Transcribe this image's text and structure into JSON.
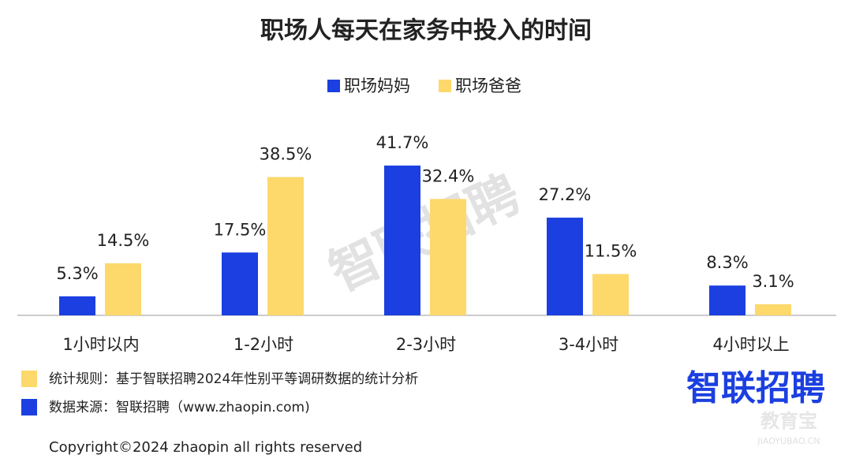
{
  "chart_data": {
    "type": "bar",
    "title": "职场人每天在家务中投入的时间",
    "categories": [
      "1小时以内",
      "1-2小时",
      "2-3小时",
      "3-4小时",
      "4小时以上"
    ],
    "series": [
      {
        "name": "职场妈妈",
        "color": "#1b3fe0",
        "values": [
          5.3,
          17.5,
          41.7,
          27.2,
          8.3
        ],
        "value_labels": [
          "5.3%",
          "17.5%",
          "41.7%",
          "27.2%",
          "8.3%"
        ]
      },
      {
        "name": "职场爸爸",
        "color": "#fdd86b",
        "values": [
          14.5,
          38.5,
          32.4,
          11.5,
          3.1
        ],
        "value_labels": [
          "14.5%",
          "38.5%",
          "32.4%",
          "11.5%",
          "3.1%"
        ]
      }
    ],
    "legend": "top",
    "watermark": "智联招聘"
  },
  "notes": [
    {
      "text": "统计规则：基于智联招聘2024年性别平等调研数据的统计分析",
      "color": "#fdd86b"
    },
    {
      "text": "数据来源：智联招聘（www.zhaopin.com)",
      "color": "#1b3fe0"
    }
  ],
  "logo": "智联招聘",
  "copyright": "Copyright©2024 zhaopin all rights reserved",
  "corner_watermark": {
    "title": "教育宝",
    "url": "JIAOYUBAO.CN"
  }
}
